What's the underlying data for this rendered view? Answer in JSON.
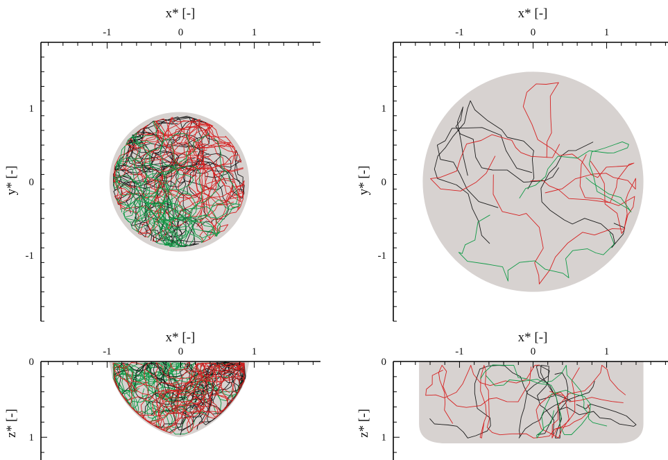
{
  "colors": {
    "region": "#d7d2d0",
    "axis": "#000000",
    "black_traj": "#1a1a1a",
    "red_traj": "#d62020",
    "green_traj": "#0f9a46"
  },
  "chart_data": [
    {
      "type": "scatter",
      "panel": "top-left",
      "xlabel": "x* [-]",
      "ylabel": "y* [-]",
      "xlim": [
        -1.9,
        1.9
      ],
      "ylim": [
        -1.9,
        1.9
      ],
      "xticks": [
        {
          "v": -1,
          "t": "-1"
        },
        {
          "v": 0,
          "t": "0"
        },
        {
          "v": 1,
          "t": "1"
        }
      ],
      "yticks": [
        {
          "v": 1,
          "t": "1"
        },
        {
          "v": 0,
          "t": "0"
        },
        {
          "v": -1,
          "t": "-1"
        }
      ],
      "region": {
        "shape": "circle",
        "cx": -0.02,
        "cy": 0.0,
        "r": 0.95
      },
      "series": [
        {
          "color": "#1a1a1a",
          "lines": 22,
          "seed": 11,
          "cx": -0.28,
          "cy": 0.28,
          "spread": 0.34,
          "step": 0.11
        },
        {
          "color": "#1a1a1a",
          "lines": 10,
          "seed": 12,
          "cx": 0.18,
          "cy": 0.32,
          "spread": 0.3,
          "step": 0.1
        },
        {
          "color": "#d62020",
          "lines": 22,
          "seed": 13,
          "cx": 0.2,
          "cy": 0.35,
          "spread": 0.38,
          "step": 0.12
        },
        {
          "color": "#d62020",
          "lines": 10,
          "seed": 14,
          "cx": 0.35,
          "cy": 0.05,
          "spread": 0.35,
          "step": 0.12
        },
        {
          "color": "#0f9a46",
          "lines": 30,
          "seed": 15,
          "cx": -0.28,
          "cy": -0.38,
          "spread": 0.28,
          "step": 0.09
        }
      ]
    },
    {
      "type": "scatter",
      "panel": "top-right",
      "xlabel": "x* [-]",
      "ylabel": "y* [-]",
      "xlim": [
        -1.9,
        1.9
      ],
      "ylim": [
        -1.9,
        1.9
      ],
      "xticks": [
        {
          "v": -1,
          "t": "-1"
        },
        {
          "v": 0,
          "t": "0"
        },
        {
          "v": 1,
          "t": "1"
        }
      ],
      "yticks": [
        {
          "v": 1,
          "t": "1"
        },
        {
          "v": 0,
          "t": "0"
        },
        {
          "v": -1,
          "t": "-1"
        }
      ],
      "region": {
        "shape": "circle",
        "cx": 0.0,
        "cy": 0.0,
        "r": 1.5
      },
      "series": [
        {
          "color": "#1a1a1a",
          "lines": 4,
          "seed": 21,
          "cx": 0.25,
          "cy": 0.3,
          "spread": 0.9,
          "step": 0.22
        },
        {
          "color": "#d62020",
          "lines": 4,
          "seed": 22,
          "cx": -0.2,
          "cy": 0.4,
          "spread": 0.95,
          "step": 0.22
        },
        {
          "color": "#0f9a46",
          "lines": 2,
          "seed": 23,
          "cx": -0.3,
          "cy": -0.3,
          "spread": 0.8,
          "step": 0.2
        }
      ]
    },
    {
      "type": "scatter",
      "panel": "bottom-left",
      "xlabel": "x* [-]",
      "ylabel": "z* [-]",
      "xlim": [
        -1.9,
        1.9
      ],
      "ylim": [
        0,
        1.3
      ],
      "xticks": [
        {
          "v": -1,
          "t": "-1"
        },
        {
          "v": 0,
          "t": "0"
        },
        {
          "v": 1,
          "t": "1"
        }
      ],
      "yticks": [
        {
          "v": 0,
          "t": "0"
        },
        {
          "v": 1,
          "t": "1"
        }
      ],
      "region": {
        "shape": "funnel",
        "cx": -0.02,
        "halfwidth": 0.95,
        "depth": 1.0
      },
      "series": [
        {
          "color": "#0f9a46",
          "lines": 30,
          "seed": 31,
          "cx": -0.4,
          "cy": 0.35,
          "spread": 0.3,
          "step": 0.09
        },
        {
          "color": "#1a1a1a",
          "lines": 24,
          "seed": 32,
          "cx": 0.28,
          "cy": 0.4,
          "spread": 0.26,
          "step": 0.09
        },
        {
          "color": "#d62020",
          "lines": 24,
          "seed": 33,
          "cx": 0.3,
          "cy": 0.42,
          "spread": 0.28,
          "step": 0.09
        }
      ]
    },
    {
      "type": "scatter",
      "panel": "bottom-right",
      "xlabel": "x* [-]",
      "ylabel": "z* [-]",
      "xlim": [
        -1.9,
        1.9
      ],
      "ylim": [
        0,
        1.3
      ],
      "xticks": [
        {
          "v": -1,
          "t": "-1"
        },
        {
          "v": 0,
          "t": "0"
        },
        {
          "v": 1,
          "t": "1"
        }
      ],
      "yticks": [
        {
          "v": 0,
          "t": "0"
        },
        {
          "v": 1,
          "t": "1"
        }
      ],
      "region": {
        "shape": "slab",
        "x0": -1.55,
        "x1": 1.5,
        "depth": 1.08
      },
      "series": [
        {
          "color": "#1a1a1a",
          "lines": 4,
          "seed": 41,
          "cx": 0.3,
          "cy": 0.48,
          "spread": 0.7,
          "step": 0.16
        },
        {
          "color": "#d62020",
          "lines": 5,
          "seed": 42,
          "cx": 0.35,
          "cy": 0.48,
          "spread": 0.75,
          "step": 0.16
        },
        {
          "color": "#0f9a46",
          "lines": 2,
          "seed": 43,
          "cx": -0.4,
          "cy": 0.5,
          "spread": 0.7,
          "step": 0.15
        }
      ]
    }
  ]
}
